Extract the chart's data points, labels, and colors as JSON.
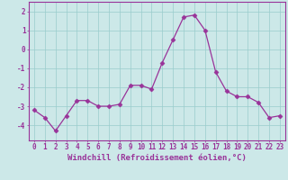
{
  "x": [
    0,
    1,
    2,
    3,
    4,
    5,
    6,
    7,
    8,
    9,
    10,
    11,
    12,
    13,
    14,
    15,
    16,
    17,
    18,
    19,
    20,
    21,
    22,
    23
  ],
  "y": [
    -3.2,
    -3.6,
    -4.3,
    -3.5,
    -2.7,
    -2.7,
    -3.0,
    -3.0,
    -2.9,
    -1.9,
    -1.9,
    -2.1,
    -0.7,
    0.5,
    1.7,
    1.8,
    1.0,
    -1.2,
    -2.2,
    -2.5,
    -2.5,
    -2.8,
    -3.6,
    -3.5
  ],
  "line_color": "#993399",
  "marker": "D",
  "marker_size": 2.5,
  "bg_color": "#cce8e8",
  "grid_color": "#99cccc",
  "xlabel": "Windchill (Refroidissement éolien,°C)",
  "ylabel": "",
  "title": "",
  "xlim": [
    -0.5,
    23.5
  ],
  "ylim": [
    -4.8,
    2.5
  ],
  "yticks": [
    2,
    1,
    0,
    -1,
    -2,
    -3,
    -4
  ],
  "xticks": [
    0,
    1,
    2,
    3,
    4,
    5,
    6,
    7,
    8,
    9,
    10,
    11,
    12,
    13,
    14,
    15,
    16,
    17,
    18,
    19,
    20,
    21,
    22,
    23
  ],
  "label_fontsize": 6.5,
  "tick_fontsize": 5.5
}
